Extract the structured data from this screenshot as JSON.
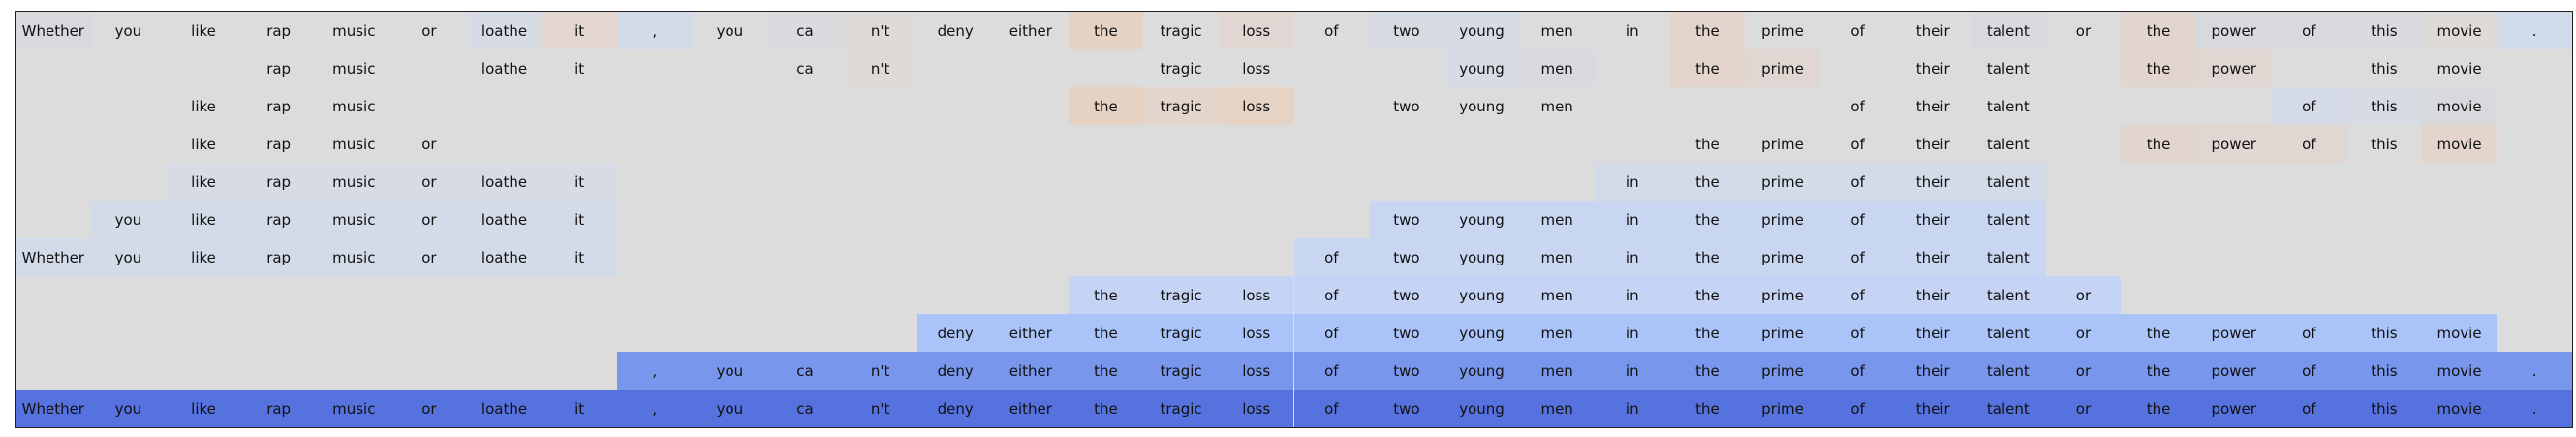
{
  "tokens": [
    "Whether",
    "you",
    "like",
    "rap",
    "music",
    "or",
    "loathe",
    "it",
    ",",
    "you",
    "ca",
    "n't",
    "deny",
    "either",
    "the",
    "tragic",
    "loss",
    "of",
    "two",
    "young",
    "men",
    "in",
    "the",
    "prime",
    "of",
    "their",
    "talent",
    "or",
    "the",
    "power",
    "of",
    "this",
    "movie",
    "."
  ],
  "rows": [
    {
      "cells": [
        {
          "i": 0,
          "text": "Whether",
          "bg": "#d8d9dd"
        },
        {
          "i": 1,
          "text": "you"
        },
        {
          "i": 2,
          "text": "like"
        },
        {
          "i": 3,
          "text": "rap"
        },
        {
          "i": 4,
          "text": "music"
        },
        {
          "i": 5,
          "text": "or"
        },
        {
          "i": 6,
          "text": "loathe",
          "bg": "#d6dbe4"
        },
        {
          "i": 7,
          "text": "it",
          "bg": "#e3d6cf"
        },
        {
          "i": 8,
          "text": ",",
          "bg": "#d3dbe8"
        },
        {
          "i": 9,
          "text": "you"
        },
        {
          "i": 10,
          "text": "ca",
          "bg": "#dadbde"
        },
        {
          "i": 11,
          "text": "n't",
          "bg": "#dedad8"
        },
        {
          "i": 12,
          "text": "deny"
        },
        {
          "i": 13,
          "text": "either"
        },
        {
          "i": 14,
          "text": "the",
          "bg": "#e6d2c3"
        },
        {
          "i": 15,
          "text": "tragic"
        },
        {
          "i": 16,
          "text": "loss",
          "bg": "#e0d7d2"
        },
        {
          "i": 17,
          "text": "of"
        },
        {
          "i": 18,
          "text": "two",
          "bg": "#d7dbe2"
        },
        {
          "i": 19,
          "text": "young",
          "bg": "#d6dbe4"
        },
        {
          "i": 20,
          "text": "men"
        },
        {
          "i": 21,
          "text": "in"
        },
        {
          "i": 22,
          "text": "the",
          "bg": "#e3d5cb"
        },
        {
          "i": 23,
          "text": "prime"
        },
        {
          "i": 24,
          "text": "of"
        },
        {
          "i": 25,
          "text": "their"
        },
        {
          "i": 26,
          "text": "talent",
          "bg": "#d9dadd"
        },
        {
          "i": 27,
          "text": "or"
        },
        {
          "i": 28,
          "text": "the",
          "bg": "#e2d5cd"
        },
        {
          "i": 29,
          "text": "power",
          "bg": "#d8d9dd"
        },
        {
          "i": 30,
          "text": "of",
          "bg": "#d8d9dd"
        },
        {
          "i": 31,
          "text": "this",
          "bg": "#d9dadd"
        },
        {
          "i": 32,
          "text": "movie",
          "bg": "#dedad8"
        },
        {
          "i": 33,
          "text": ".",
          "bg": "#d0dbea"
        }
      ]
    },
    {
      "cells": [
        {
          "i": 3,
          "text": "rap"
        },
        {
          "i": 4,
          "text": "music"
        },
        {
          "i": 6,
          "text": "loathe"
        },
        {
          "i": 7,
          "text": "it"
        },
        {
          "i": 10,
          "text": "ca"
        },
        {
          "i": 11,
          "text": "n't",
          "bg": "#dedad8"
        },
        {
          "i": 15,
          "text": "tragic"
        },
        {
          "i": 16,
          "text": "loss"
        },
        {
          "i": 19,
          "text": "young",
          "bg": "#d6dbe4"
        },
        {
          "i": 20,
          "text": "men",
          "bg": "#d8dadf"
        },
        {
          "i": 22,
          "text": "the",
          "bg": "#e3d5cb"
        },
        {
          "i": 23,
          "text": "prime",
          "bg": "#e0d7d2"
        },
        {
          "i": 25,
          "text": "their"
        },
        {
          "i": 26,
          "text": "talent"
        },
        {
          "i": 28,
          "text": "the",
          "bg": "#e2d5cd"
        },
        {
          "i": 29,
          "text": "power",
          "bg": "#e0d7d2"
        },
        {
          "i": 31,
          "text": "this"
        },
        {
          "i": 32,
          "text": "movie"
        }
      ]
    },
    {
      "cells": [
        {
          "i": 2,
          "text": "like"
        },
        {
          "i": 3,
          "text": "rap"
        },
        {
          "i": 4,
          "text": "music"
        },
        {
          "i": 14,
          "text": "the",
          "bg": "#e6d2c3"
        },
        {
          "i": 15,
          "text": "tragic",
          "bg": "#e3d5cb"
        },
        {
          "i": 16,
          "text": "loss",
          "bg": "#e5d3c6"
        },
        {
          "i": 18,
          "text": "two"
        },
        {
          "i": 19,
          "text": "young"
        },
        {
          "i": 20,
          "text": "men"
        },
        {
          "i": 24,
          "text": "of"
        },
        {
          "i": 25,
          "text": "their"
        },
        {
          "i": 26,
          "text": "talent"
        },
        {
          "i": 30,
          "text": "of",
          "bg": "#d4dae6"
        },
        {
          "i": 31,
          "text": "this",
          "bg": "#d6dbe4"
        },
        {
          "i": 32,
          "text": "movie",
          "bg": "#d8d9dd"
        }
      ]
    },
    {
      "cells": [
        {
          "i": 2,
          "text": "like"
        },
        {
          "i": 3,
          "text": "rap"
        },
        {
          "i": 4,
          "text": "music"
        },
        {
          "i": 5,
          "text": "or"
        },
        {
          "i": 22,
          "text": "the"
        },
        {
          "i": 23,
          "text": "prime"
        },
        {
          "i": 24,
          "text": "of"
        },
        {
          "i": 25,
          "text": "their"
        },
        {
          "i": 26,
          "text": "talent"
        },
        {
          "i": 28,
          "text": "the",
          "bg": "#e2d5cd"
        },
        {
          "i": 29,
          "text": "power",
          "bg": "#e0d7d2"
        },
        {
          "i": 30,
          "text": "of",
          "bg": "#e0d7d2"
        },
        {
          "i": 31,
          "text": "this"
        },
        {
          "i": 32,
          "text": "movie",
          "bg": "#e3d5cb"
        }
      ]
    },
    {
      "cells": [
        {
          "i": 2,
          "text": "like",
          "bg": "#d6dbe4"
        },
        {
          "i": 3,
          "text": "rap",
          "bg": "#d6dbe4"
        },
        {
          "i": 4,
          "text": "music",
          "bg": "#d6dbe4"
        },
        {
          "i": 5,
          "text": "or",
          "bg": "#d6dbe4"
        },
        {
          "i": 6,
          "text": "loathe",
          "bg": "#d6dbe4"
        },
        {
          "i": 7,
          "text": "it",
          "bg": "#d6dbe4"
        },
        {
          "i": 21,
          "text": "in",
          "bg": "#d3dbe8"
        },
        {
          "i": 22,
          "text": "the",
          "bg": "#d3dbe8"
        },
        {
          "i": 23,
          "text": "prime",
          "bg": "#d3dbe8"
        },
        {
          "i": 24,
          "text": "of",
          "bg": "#d3dbe8"
        },
        {
          "i": 25,
          "text": "their",
          "bg": "#d3dbe8"
        },
        {
          "i": 26,
          "text": "talent",
          "bg": "#d3dbe8"
        }
      ]
    },
    {
      "cells": [
        {
          "i": 1,
          "text": "you",
          "bg": "#d3dbe8"
        },
        {
          "i": 2,
          "text": "like",
          "bg": "#d3dbe8"
        },
        {
          "i": 3,
          "text": "rap",
          "bg": "#d3dbe8"
        },
        {
          "i": 4,
          "text": "music",
          "bg": "#d3dbe8"
        },
        {
          "i": 5,
          "text": "or",
          "bg": "#d3dbe8"
        },
        {
          "i": 6,
          "text": "loathe",
          "bg": "#d3dbe8"
        },
        {
          "i": 7,
          "text": "it",
          "bg": "#d3dbe8"
        },
        {
          "i": 18,
          "text": "two",
          "bg": "#c8d6f2"
        },
        {
          "i": 19,
          "text": "young",
          "bg": "#c8d6f2"
        },
        {
          "i": 20,
          "text": "men",
          "bg": "#c8d6f2"
        },
        {
          "i": 21,
          "text": "in",
          "bg": "#c8d6f2"
        },
        {
          "i": 22,
          "text": "the",
          "bg": "#c8d6f2"
        },
        {
          "i": 23,
          "text": "prime",
          "bg": "#c8d6f2"
        },
        {
          "i": 24,
          "text": "of",
          "bg": "#c8d6f2"
        },
        {
          "i": 25,
          "text": "their",
          "bg": "#c8d6f2"
        },
        {
          "i": 26,
          "text": "talent",
          "bg": "#c8d6f2"
        }
      ]
    },
    {
      "cells": [
        {
          "i": 0,
          "text": "Whether",
          "bg": "#d3dbe8"
        },
        {
          "i": 1,
          "text": "you",
          "bg": "#d3dbe8"
        },
        {
          "i": 2,
          "text": "like",
          "bg": "#d3dbe8"
        },
        {
          "i": 3,
          "text": "rap",
          "bg": "#d3dbe8"
        },
        {
          "i": 4,
          "text": "music",
          "bg": "#d3dbe8"
        },
        {
          "i": 5,
          "text": "or",
          "bg": "#d3dbe8"
        },
        {
          "i": 6,
          "text": "loathe",
          "bg": "#d3dbe8"
        },
        {
          "i": 7,
          "text": "it",
          "bg": "#d3dbe8"
        },
        {
          "i": 17,
          "text": "of",
          "bg": "#c8d6f2"
        },
        {
          "i": 18,
          "text": "two",
          "bg": "#c8d6f2"
        },
        {
          "i": 19,
          "text": "young",
          "bg": "#c8d6f2"
        },
        {
          "i": 20,
          "text": "men",
          "bg": "#c8d6f2"
        },
        {
          "i": 21,
          "text": "in",
          "bg": "#c8d6f2"
        },
        {
          "i": 22,
          "text": "the",
          "bg": "#c8d6f2"
        },
        {
          "i": 23,
          "text": "prime",
          "bg": "#c8d6f2"
        },
        {
          "i": 24,
          "text": "of",
          "bg": "#c8d6f2"
        },
        {
          "i": 25,
          "text": "their",
          "bg": "#c8d6f2"
        },
        {
          "i": 26,
          "text": "talent",
          "bg": "#c8d6f2"
        }
      ]
    },
    {
      "cells": [
        {
          "i": 14,
          "text": "the",
          "bg": "#c5d4f4"
        },
        {
          "i": 15,
          "text": "tragic",
          "bg": "#c5d4f4"
        },
        {
          "i": 16,
          "text": "loss",
          "bg": "#c5d4f4"
        },
        {
          "i": 17,
          "text": "of",
          "bg": "#c5d4f4"
        },
        {
          "i": 18,
          "text": "two",
          "bg": "#c5d4f4"
        },
        {
          "i": 19,
          "text": "young",
          "bg": "#c5d4f4"
        },
        {
          "i": 20,
          "text": "men",
          "bg": "#c5d4f4"
        },
        {
          "i": 21,
          "text": "in",
          "bg": "#c5d4f4"
        },
        {
          "i": 22,
          "text": "the",
          "bg": "#c5d4f4"
        },
        {
          "i": 23,
          "text": "prime",
          "bg": "#c5d4f4"
        },
        {
          "i": 24,
          "text": "of",
          "bg": "#c5d4f4"
        },
        {
          "i": 25,
          "text": "their",
          "bg": "#c5d4f4"
        },
        {
          "i": 26,
          "text": "talent",
          "bg": "#c5d4f4"
        },
        {
          "i": 27,
          "text": "or",
          "bg": "#c5d4f4"
        }
      ]
    },
    {
      "cells": [
        {
          "i": 12,
          "text": "deny",
          "bg": "#aac4fa"
        },
        {
          "i": 13,
          "text": "either",
          "bg": "#aac4fa"
        },
        {
          "i": 14,
          "text": "the",
          "bg": "#aac4fa"
        },
        {
          "i": 15,
          "text": "tragic",
          "bg": "#aac4fa"
        },
        {
          "i": 16,
          "text": "loss",
          "bg": "#aac4fa"
        },
        {
          "i": 17,
          "text": "of",
          "bg": "#aac4fa"
        },
        {
          "i": 18,
          "text": "two",
          "bg": "#aac4fa"
        },
        {
          "i": 19,
          "text": "young",
          "bg": "#aac4fa"
        },
        {
          "i": 20,
          "text": "men",
          "bg": "#aac4fa"
        },
        {
          "i": 21,
          "text": "in",
          "bg": "#aac4fa"
        },
        {
          "i": 22,
          "text": "the",
          "bg": "#aac4fa"
        },
        {
          "i": 23,
          "text": "prime",
          "bg": "#aac4fa"
        },
        {
          "i": 24,
          "text": "of",
          "bg": "#aac4fa"
        },
        {
          "i": 25,
          "text": "their",
          "bg": "#aac4fa"
        },
        {
          "i": 26,
          "text": "talent",
          "bg": "#aac4fa"
        },
        {
          "i": 27,
          "text": "or",
          "bg": "#aac4fa"
        },
        {
          "i": 28,
          "text": "the",
          "bg": "#aac4fa"
        },
        {
          "i": 29,
          "text": "power",
          "bg": "#aac4fa"
        },
        {
          "i": 30,
          "text": "of",
          "bg": "#aac4fa"
        },
        {
          "i": 31,
          "text": "this",
          "bg": "#aac4fa"
        },
        {
          "i": 32,
          "text": "movie",
          "bg": "#aac4fa"
        }
      ]
    },
    {
      "cells": [
        {
          "i": 8,
          "text": ",",
          "bg": "#7896ec"
        },
        {
          "i": 9,
          "text": "you",
          "bg": "#7896ec"
        },
        {
          "i": 10,
          "text": "ca",
          "bg": "#7896ec"
        },
        {
          "i": 11,
          "text": "n't",
          "bg": "#7896ec"
        },
        {
          "i": 12,
          "text": "deny",
          "bg": "#7896ec"
        },
        {
          "i": 13,
          "text": "either",
          "bg": "#7896ec"
        },
        {
          "i": 14,
          "text": "the",
          "bg": "#7896ec"
        },
        {
          "i": 15,
          "text": "tragic",
          "bg": "#7896ec"
        },
        {
          "i": 16,
          "text": "loss",
          "bg": "#7896ec"
        },
        {
          "i": 17,
          "text": "of",
          "bg": "#7896ec"
        },
        {
          "i": 18,
          "text": "two",
          "bg": "#7896ec"
        },
        {
          "i": 19,
          "text": "young",
          "bg": "#7896ec"
        },
        {
          "i": 20,
          "text": "men",
          "bg": "#7896ec"
        },
        {
          "i": 21,
          "text": "in",
          "bg": "#7896ec"
        },
        {
          "i": 22,
          "text": "the",
          "bg": "#7896ec"
        },
        {
          "i": 23,
          "text": "prime",
          "bg": "#7896ec"
        },
        {
          "i": 24,
          "text": "of",
          "bg": "#7896ec"
        },
        {
          "i": 25,
          "text": "their",
          "bg": "#7896ec"
        },
        {
          "i": 26,
          "text": "talent",
          "bg": "#7896ec"
        },
        {
          "i": 27,
          "text": "or",
          "bg": "#7896ec"
        },
        {
          "i": 28,
          "text": "the",
          "bg": "#7896ec"
        },
        {
          "i": 29,
          "text": "power",
          "bg": "#7896ec"
        },
        {
          "i": 30,
          "text": "of",
          "bg": "#7896ec"
        },
        {
          "i": 31,
          "text": "this",
          "bg": "#7896ec"
        },
        {
          "i": 32,
          "text": "movie",
          "bg": "#7896ec"
        },
        {
          "i": 33,
          "text": ".",
          "bg": "#7896ec"
        }
      ]
    },
    {
      "cells": [
        {
          "i": 0,
          "text": "Whether",
          "bg": "#5672de"
        },
        {
          "i": 1,
          "text": "you",
          "bg": "#5672de"
        },
        {
          "i": 2,
          "text": "like",
          "bg": "#5672de"
        },
        {
          "i": 3,
          "text": "rap",
          "bg": "#5672de"
        },
        {
          "i": 4,
          "text": "music",
          "bg": "#5672de"
        },
        {
          "i": 5,
          "text": "or",
          "bg": "#5672de"
        },
        {
          "i": 6,
          "text": "loathe",
          "bg": "#5672de"
        },
        {
          "i": 7,
          "text": "it",
          "bg": "#5672de"
        },
        {
          "i": 8,
          "text": ",",
          "bg": "#5672de"
        },
        {
          "i": 9,
          "text": "you",
          "bg": "#5672de"
        },
        {
          "i": 10,
          "text": "ca",
          "bg": "#5672de"
        },
        {
          "i": 11,
          "text": "n't",
          "bg": "#5672de"
        },
        {
          "i": 12,
          "text": "deny",
          "bg": "#5672de"
        },
        {
          "i": 13,
          "text": "either",
          "bg": "#5672de"
        },
        {
          "i": 14,
          "text": "the",
          "bg": "#5672de"
        },
        {
          "i": 15,
          "text": "tragic",
          "bg": "#5672de"
        },
        {
          "i": 16,
          "text": "loss",
          "bg": "#5672de"
        },
        {
          "i": 17,
          "text": "of",
          "bg": "#5672de"
        },
        {
          "i": 18,
          "text": "two",
          "bg": "#5672de"
        },
        {
          "i": 19,
          "text": "young",
          "bg": "#5672de"
        },
        {
          "i": 20,
          "text": "men",
          "bg": "#5672de"
        },
        {
          "i": 21,
          "text": "in",
          "bg": "#5672de"
        },
        {
          "i": 22,
          "text": "the",
          "bg": "#5672de"
        },
        {
          "i": 23,
          "text": "prime",
          "bg": "#5672de"
        },
        {
          "i": 24,
          "text": "of",
          "bg": "#5672de"
        },
        {
          "i": 25,
          "text": "their",
          "bg": "#5672de"
        },
        {
          "i": 26,
          "text": "talent",
          "bg": "#5672de"
        },
        {
          "i": 27,
          "text": "or",
          "bg": "#5672de"
        },
        {
          "i": 28,
          "text": "the",
          "bg": "#5672de"
        },
        {
          "i": 29,
          "text": "power",
          "bg": "#5672de"
        },
        {
          "i": 30,
          "text": "of",
          "bg": "#5672de"
        },
        {
          "i": 31,
          "text": "this",
          "bg": "#5672de"
        },
        {
          "i": 32,
          "text": "movie",
          "bg": "#5672de"
        },
        {
          "i": 33,
          "text": ".",
          "bg": "#5672de"
        }
      ]
    }
  ]
}
